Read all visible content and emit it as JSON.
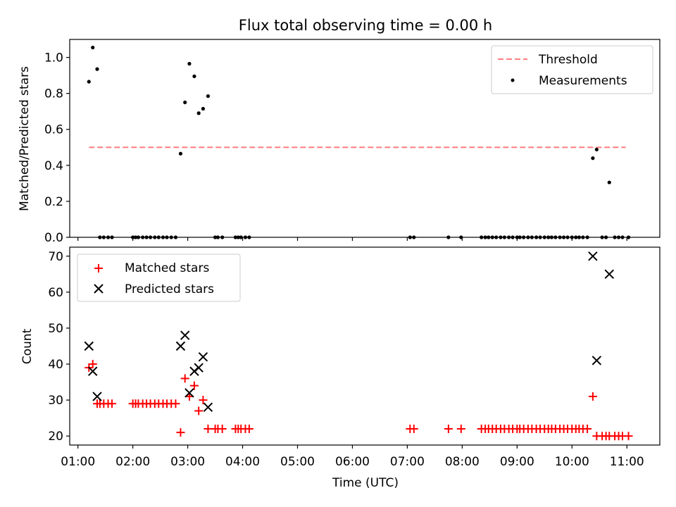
{
  "chart_data": [
    {
      "type": "scatter",
      "title": "Flux total observing time = 0.00 h",
      "xlabel": "",
      "ylabel": "Matched/Predicted stars",
      "xlim": [
        0.85,
        11.6
      ],
      "ylim": [
        0,
        1.1
      ],
      "yticks": [
        {
          "value": 0.0,
          "label": "0.0"
        },
        {
          "value": 0.2,
          "label": "0.2"
        },
        {
          "value": 0.4,
          "label": "0.4"
        },
        {
          "value": 0.6,
          "label": "0.6"
        },
        {
          "value": 0.8,
          "label": "0.8"
        },
        {
          "value": 1.0,
          "label": "1.0"
        }
      ],
      "xticks": [
        1,
        2,
        3,
        4,
        5,
        6,
        7,
        8,
        9,
        10,
        11
      ],
      "legend": {
        "placement": "upper right",
        "entries": [
          "Threshold",
          "Measurements"
        ]
      },
      "series": [
        {
          "name": "Threshold",
          "kind": "dashed-line",
          "color": "#ff7f7f",
          "x": [
            1.2,
            10.98
          ],
          "y": [
            0.5,
            0.5
          ]
        },
        {
          "name": "Measurements",
          "kind": "dots",
          "color": "#000000",
          "x": [
            1.2,
            1.27,
            1.35,
            1.4,
            1.47,
            1.55,
            1.62,
            2.0,
            2.05,
            2.1,
            2.18,
            2.25,
            2.32,
            2.4,
            2.47,
            2.55,
            2.62,
            2.7,
            2.78,
            2.87,
            2.95,
            3.03,
            3.12,
            3.2,
            3.28,
            3.37,
            3.5,
            3.55,
            3.63,
            3.87,
            3.92,
            3.97,
            4.05,
            4.12,
            7.05,
            7.12,
            7.75,
            7.98,
            8.35,
            8.42,
            8.48,
            8.55,
            8.62,
            8.7,
            8.77,
            8.85,
            8.92,
            9.0,
            9.05,
            9.12,
            9.2,
            9.27,
            9.35,
            9.42,
            9.5,
            9.57,
            9.63,
            9.7,
            9.78,
            9.85,
            9.92,
            10.0,
            10.07,
            10.13,
            10.2,
            10.28,
            10.38,
            10.45,
            10.55,
            10.62,
            10.68,
            10.78,
            10.85,
            10.92,
            11.03
          ],
          "y": [
            0.865,
            1.055,
            0.935,
            0,
            0,
            0,
            0,
            0,
            0,
            0,
            0,
            0,
            0,
            0,
            0,
            0,
            0,
            0,
            0,
            0.465,
            0.75,
            0.965,
            0.895,
            0.69,
            0.715,
            0.785,
            0,
            0,
            0,
            0,
            0,
            0,
            0,
            0,
            0,
            0,
            0,
            0,
            0,
            0,
            0,
            0,
            0,
            0,
            0,
            0,
            0,
            0,
            0,
            0,
            0,
            0,
            0,
            0,
            0,
            0,
            0,
            0,
            0,
            0,
            0,
            0,
            0,
            0,
            0,
            0,
            0.44,
            0.488,
            0,
            0,
            0.305,
            0,
            0,
            0,
            0
          ]
        }
      ]
    },
    {
      "type": "scatter",
      "title": "",
      "xlabel": "Time (UTC)",
      "ylabel": "Count",
      "xlim": [
        0.85,
        11.6
      ],
      "ylim": [
        17.5,
        72.5
      ],
      "yticks": [
        {
          "value": 20,
          "label": "20"
        },
        {
          "value": 30,
          "label": "30"
        },
        {
          "value": 40,
          "label": "40"
        },
        {
          "value": 50,
          "label": "50"
        },
        {
          "value": 60,
          "label": "60"
        },
        {
          "value": 70,
          "label": "70"
        }
      ],
      "xticks": [
        {
          "value": 1,
          "label": "01:00"
        },
        {
          "value": 2,
          "label": "02:00"
        },
        {
          "value": 3,
          "label": "03:00"
        },
        {
          "value": 4,
          "label": "04:00"
        },
        {
          "value": 5,
          "label": "05:00"
        },
        {
          "value": 6,
          "label": "06:00"
        },
        {
          "value": 7,
          "label": "07:00"
        },
        {
          "value": 8,
          "label": "08:00"
        },
        {
          "value": 9,
          "label": "09:00"
        },
        {
          "value": 10,
          "label": "10:00"
        },
        {
          "value": 11,
          "label": "11:00"
        }
      ],
      "legend": {
        "placement": "upper left",
        "entries": [
          "Matched stars",
          "Predicted stars"
        ]
      },
      "series": [
        {
          "name": "Matched stars",
          "kind": "plus",
          "color": "#ff0000",
          "x": [
            1.2,
            1.27,
            1.35,
            1.4,
            1.47,
            1.55,
            1.62,
            2.0,
            2.05,
            2.1,
            2.18,
            2.25,
            2.32,
            2.4,
            2.47,
            2.55,
            2.62,
            2.7,
            2.78,
            2.87,
            2.95,
            3.03,
            3.12,
            3.2,
            3.28,
            3.37,
            3.5,
            3.55,
            3.63,
            3.87,
            3.92,
            3.97,
            4.05,
            4.12,
            7.05,
            7.12,
            7.75,
            7.98,
            8.35,
            8.42,
            8.48,
            8.55,
            8.62,
            8.7,
            8.77,
            8.85,
            8.92,
            9.0,
            9.05,
            9.12,
            9.2,
            9.27,
            9.35,
            9.42,
            9.5,
            9.57,
            9.63,
            9.7,
            9.78,
            9.85,
            9.92,
            10.0,
            10.07,
            10.13,
            10.2,
            10.28,
            10.38,
            10.45,
            10.55,
            10.62,
            10.68,
            10.78,
            10.85,
            10.92,
            11.03
          ],
          "y": [
            39,
            40,
            29,
            29,
            29,
            29,
            29,
            29,
            29,
            29,
            29,
            29,
            29,
            29,
            29,
            29,
            29,
            29,
            29,
            21,
            36,
            31,
            34,
            27,
            30,
            22,
            22,
            22,
            22,
            22,
            22,
            22,
            22,
            22,
            22,
            22,
            22,
            22,
            22,
            22,
            22,
            22,
            22,
            22,
            22,
            22,
            22,
            22,
            22,
            22,
            22,
            22,
            22,
            22,
            22,
            22,
            22,
            22,
            22,
            22,
            22,
            22,
            22,
            22,
            22,
            22,
            31,
            20,
            20,
            20,
            20,
            20,
            20,
            20,
            20
          ]
        },
        {
          "name": "Predicted stars",
          "kind": "cross",
          "color": "#000000",
          "x": [
            1.2,
            1.27,
            1.35,
            2.87,
            2.95,
            3.03,
            3.12,
            3.2,
            3.28,
            3.37,
            10.38,
            10.45,
            10.68
          ],
          "y": [
            45,
            38,
            31,
            45,
            48,
            32,
            38,
            39,
            42,
            28,
            70,
            41,
            65
          ]
        }
      ]
    }
  ]
}
